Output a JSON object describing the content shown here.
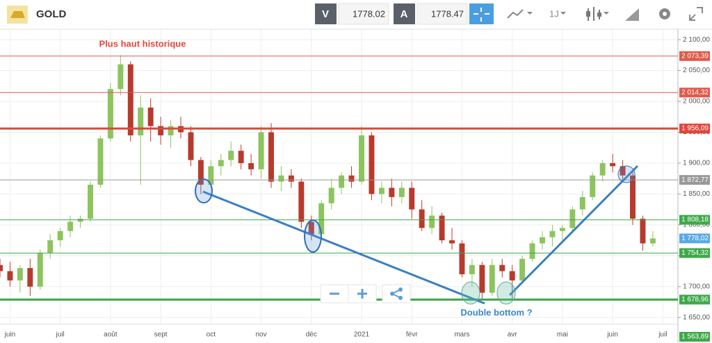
{
  "toolbar": {
    "symbol": "GOLD",
    "bid_label": "V",
    "bid": 1778.02,
    "ask_label": "A",
    "ask": 1778.47,
    "period": "1J"
  },
  "chart_data": {
    "type": "candlestick",
    "xlim": [
      -0.2,
      13.3
    ],
    "xticks": [
      {
        "value": 0,
        "label": "juin"
      },
      {
        "value": 1,
        "label": "juil"
      },
      {
        "value": 2,
        "label": "août"
      },
      {
        "value": 3,
        "label": "sept"
      },
      {
        "value": 4,
        "label": "oct"
      },
      {
        "value": 5,
        "label": "nov"
      },
      {
        "value": 6,
        "label": "déc"
      },
      {
        "value": 7,
        "label": "2021"
      },
      {
        "value": 8,
        "label": "févr"
      },
      {
        "value": 9,
        "label": "mars"
      },
      {
        "value": 10,
        "label": "avr"
      },
      {
        "value": 11,
        "label": "mai"
      },
      {
        "value": 12,
        "label": "juin"
      },
      {
        "value": 13,
        "label": "juil"
      }
    ],
    "ylim": [
      1639,
      2117
    ],
    "yticks": [
      {
        "value": 2100,
        "label": "2 100,00"
      },
      {
        "value": 2050,
        "label": "2 050,00"
      },
      {
        "value": 2000,
        "label": "2 000,00"
      },
      {
        "value": 1950,
        "label": "1 950,00"
      },
      {
        "value": 1900,
        "label": "1 900,00"
      },
      {
        "value": 1850,
        "label": "1 850,00"
      },
      {
        "value": 1800,
        "label": "1 800,00"
      },
      {
        "value": 1750,
        "label": "1 750,00"
      },
      {
        "value": 1700,
        "label": "1 700,00"
      },
      {
        "value": 1650,
        "label": "1 650,00"
      }
    ],
    "grid": true,
    "up_color": "#8cc45e",
    "down_color": "#b83a2c",
    "levels": [
      {
        "value": 2073.39,
        "label": "2 073,39",
        "color": "#e05a4c",
        "width": 1
      },
      {
        "value": 2014.32,
        "label": "2 014,32",
        "color": "#e05a4c",
        "width": 1
      },
      {
        "value": 1956.09,
        "label": "1 956,09",
        "color": "#e0463a",
        "width": 3
      },
      {
        "value": 1872.77,
        "label": "1 872,77",
        "color": "#999999",
        "width": 1
      },
      {
        "value": 1808.18,
        "label": "1 808,18",
        "color": "#3fa94a",
        "width": 1
      },
      {
        "value": 1754.32,
        "label": "1 754,32",
        "color": "#3fa94a",
        "width": 1
      },
      {
        "value": 1678.96,
        "label": "1 678,96",
        "color": "#3fa94a",
        "width": 3
      },
      {
        "value": 1563.89,
        "label": "1 563,89",
        "color": "#3fa94a",
        "width": 0
      }
    ],
    "last": {
      "value": 1778.02,
      "label": "1 778,02",
      "color": "#5aa9e6"
    },
    "annotations": [
      {
        "text": "Plus haut historique",
        "color": "#e04a3a"
      },
      {
        "text": "Double bottom ?",
        "color": "#3a86c8"
      }
    ],
    "candles": [
      {
        "x": -0.2,
        "open": 1735,
        "high": 1745,
        "low": 1715,
        "close": 1725
      },
      {
        "x": 0,
        "open": 1725,
        "high": 1740,
        "low": 1700,
        "close": 1710
      },
      {
        "x": 0.2,
        "open": 1710,
        "high": 1735,
        "low": 1690,
        "close": 1730
      },
      {
        "x": 0.4,
        "open": 1730,
        "high": 1745,
        "low": 1685,
        "close": 1700
      },
      {
        "x": 0.6,
        "open": 1700,
        "high": 1760,
        "low": 1695,
        "close": 1755
      },
      {
        "x": 0.8,
        "open": 1755,
        "high": 1785,
        "low": 1745,
        "close": 1775
      },
      {
        "x": 1,
        "open": 1775,
        "high": 1795,
        "low": 1765,
        "close": 1790
      },
      {
        "x": 1.2,
        "open": 1790,
        "high": 1815,
        "low": 1780,
        "close": 1805
      },
      {
        "x": 1.4,
        "open": 1805,
        "high": 1815,
        "low": 1795,
        "close": 1810
      },
      {
        "x": 1.6,
        "open": 1810,
        "high": 1870,
        "low": 1805,
        "close": 1865
      },
      {
        "x": 1.8,
        "open": 1865,
        "high": 1945,
        "low": 1860,
        "close": 1940
      },
      {
        "x": 2,
        "open": 1940,
        "high": 2030,
        "low": 1935,
        "close": 2020
      },
      {
        "x": 2.2,
        "open": 2020,
        "high": 2075,
        "low": 2010,
        "close": 2060
      },
      {
        "x": 2.4,
        "open": 2060,
        "high": 2065,
        "low": 1935,
        "close": 1945
      },
      {
        "x": 2.6,
        "open": 1945,
        "high": 2010,
        "low": 1865,
        "close": 1990
      },
      {
        "x": 2.8,
        "open": 1990,
        "high": 2005,
        "low": 1935,
        "close": 1960
      },
      {
        "x": 3,
        "open": 1960,
        "high": 1975,
        "low": 1930,
        "close": 1945
      },
      {
        "x": 3.2,
        "open": 1945,
        "high": 1970,
        "low": 1925,
        "close": 1960
      },
      {
        "x": 3.4,
        "open": 1960,
        "high": 1975,
        "low": 1940,
        "close": 1950
      },
      {
        "x": 3.6,
        "open": 1950,
        "high": 1960,
        "low": 1895,
        "close": 1905
      },
      {
        "x": 3.8,
        "open": 1905,
        "high": 1910,
        "low": 1850,
        "close": 1865
      },
      {
        "x": 4,
        "open": 1865,
        "high": 1905,
        "low": 1860,
        "close": 1895
      },
      {
        "x": 4.2,
        "open": 1895,
        "high": 1915,
        "low": 1880,
        "close": 1905
      },
      {
        "x": 4.4,
        "open": 1905,
        "high": 1935,
        "low": 1895,
        "close": 1920
      },
      {
        "x": 4.6,
        "open": 1920,
        "high": 1930,
        "low": 1890,
        "close": 1900
      },
      {
        "x": 4.8,
        "open": 1900,
        "high": 1915,
        "low": 1880,
        "close": 1890
      },
      {
        "x": 5,
        "open": 1890,
        "high": 1960,
        "low": 1875,
        "close": 1950
      },
      {
        "x": 5.2,
        "open": 1950,
        "high": 1965,
        "low": 1860,
        "close": 1870
      },
      {
        "x": 5.4,
        "open": 1870,
        "high": 1895,
        "low": 1855,
        "close": 1880
      },
      {
        "x": 5.6,
        "open": 1880,
        "high": 1890,
        "low": 1860,
        "close": 1870
      },
      {
        "x": 5.8,
        "open": 1870,
        "high": 1875,
        "low": 1795,
        "close": 1805
      },
      {
        "x": 6,
        "open": 1805,
        "high": 1815,
        "low": 1775,
        "close": 1785
      },
      {
        "x": 6.2,
        "open": 1785,
        "high": 1840,
        "low": 1780,
        "close": 1835
      },
      {
        "x": 6.4,
        "open": 1835,
        "high": 1875,
        "low": 1825,
        "close": 1860
      },
      {
        "x": 6.6,
        "open": 1860,
        "high": 1885,
        "low": 1850,
        "close": 1880
      },
      {
        "x": 6.8,
        "open": 1880,
        "high": 1895,
        "low": 1860,
        "close": 1870
      },
      {
        "x": 7,
        "open": 1870,
        "high": 1960,
        "low": 1865,
        "close": 1945
      },
      {
        "x": 7.2,
        "open": 1945,
        "high": 1950,
        "low": 1840,
        "close": 1850
      },
      {
        "x": 7.4,
        "open": 1850,
        "high": 1870,
        "low": 1835,
        "close": 1860
      },
      {
        "x": 7.6,
        "open": 1860,
        "high": 1875,
        "low": 1830,
        "close": 1845
      },
      {
        "x": 7.8,
        "open": 1845,
        "high": 1870,
        "low": 1835,
        "close": 1860
      },
      {
        "x": 8,
        "open": 1860,
        "high": 1870,
        "low": 1810,
        "close": 1825
      },
      {
        "x": 8.2,
        "open": 1825,
        "high": 1840,
        "low": 1790,
        "close": 1795
      },
      {
        "x": 8.4,
        "open": 1795,
        "high": 1830,
        "low": 1785,
        "close": 1815
      },
      {
        "x": 8.6,
        "open": 1815,
        "high": 1820,
        "low": 1770,
        "close": 1775
      },
      {
        "x": 8.8,
        "open": 1775,
        "high": 1795,
        "low": 1760,
        "close": 1770
      },
      {
        "x": 9,
        "open": 1770,
        "high": 1775,
        "low": 1715,
        "close": 1720
      },
      {
        "x": 9.2,
        "open": 1720,
        "high": 1745,
        "low": 1700,
        "close": 1735
      },
      {
        "x": 9.4,
        "open": 1735,
        "high": 1740,
        "low": 1680,
        "close": 1690
      },
      {
        "x": 9.6,
        "open": 1690,
        "high": 1745,
        "low": 1685,
        "close": 1735
      },
      {
        "x": 9.8,
        "open": 1735,
        "high": 1745,
        "low": 1715,
        "close": 1725
      },
      {
        "x": 10,
        "open": 1725,
        "high": 1735,
        "low": 1680,
        "close": 1710
      },
      {
        "x": 10.2,
        "open": 1710,
        "high": 1750,
        "low": 1705,
        "close": 1745
      },
      {
        "x": 10.4,
        "open": 1745,
        "high": 1775,
        "low": 1740,
        "close": 1770
      },
      {
        "x": 10.6,
        "open": 1770,
        "high": 1790,
        "low": 1760,
        "close": 1780
      },
      {
        "x": 10.8,
        "open": 1780,
        "high": 1800,
        "low": 1765,
        "close": 1790
      },
      {
        "x": 11,
        "open": 1790,
        "high": 1800,
        "low": 1775,
        "close": 1795
      },
      {
        "x": 11.2,
        "open": 1795,
        "high": 1830,
        "low": 1790,
        "close": 1825
      },
      {
        "x": 11.4,
        "open": 1825,
        "high": 1855,
        "low": 1815,
        "close": 1845
      },
      {
        "x": 11.6,
        "open": 1845,
        "high": 1885,
        "low": 1840,
        "close": 1880
      },
      {
        "x": 11.8,
        "open": 1880,
        "high": 1905,
        "low": 1870,
        "close": 1900
      },
      {
        "x": 12,
        "open": 1900,
        "high": 1915,
        "low": 1885,
        "close": 1895
      },
      {
        "x": 12.2,
        "open": 1895,
        "high": 1905,
        "low": 1870,
        "close": 1880
      },
      {
        "x": 12.4,
        "open": 1880,
        "high": 1885,
        "low": 1800,
        "close": 1810
      },
      {
        "x": 12.6,
        "open": 1810,
        "high": 1815,
        "low": 1758,
        "close": 1770
      },
      {
        "x": 12.8,
        "open": 1770,
        "high": 1790,
        "low": 1765,
        "close": 1778.02
      }
    ]
  }
}
